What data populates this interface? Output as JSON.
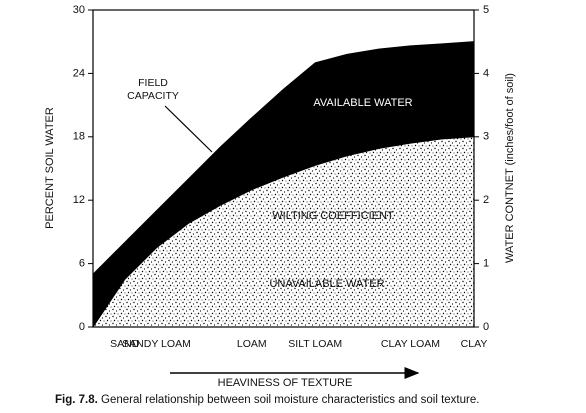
{
  "chart_data": {
    "type": "area",
    "categories": [
      null,
      "SAND",
      "SANDY LOAM",
      null,
      null,
      "LOAM",
      null,
      "SILT LOAM",
      null,
      null,
      "CLAY LOAM",
      null,
      "CLAY"
    ],
    "series": [
      {
        "name": "FIELD CAPACITY",
        "color": "#000000",
        "values": [
          5,
          8,
          11,
          14,
          17,
          19.8,
          22.5,
          25,
          25.8,
          26.3,
          26.6,
          26.8,
          27
        ]
      },
      {
        "name": "WILTING COEFFICIENT",
        "color": "#000000",
        "values": [
          0,
          4.5,
          7.5,
          9.8,
          11.5,
          13,
          14.2,
          15.3,
          16.2,
          16.9,
          17.4,
          17.8,
          18
        ]
      }
    ],
    "annotations": [
      "AVAILABLE WATER",
      "UNAVAILABLE WATER"
    ],
    "ylabel": "PERCENT SOIL WATER",
    "y2label": "WATER CONTNET (inches/foot of soil)",
    "xlabel": "HEAVINESS OF TEXTURE",
    "ylim": [
      0,
      30
    ],
    "yticks": [
      0,
      6,
      12,
      18,
      24,
      30
    ],
    "y2lim": [
      0,
      5
    ],
    "y2ticks": [
      0,
      1,
      2,
      3,
      4,
      5
    ],
    "caption_label": "Fig. 7.8.",
    "caption": "General relationship between soil moisture characteristics and soil texture."
  }
}
